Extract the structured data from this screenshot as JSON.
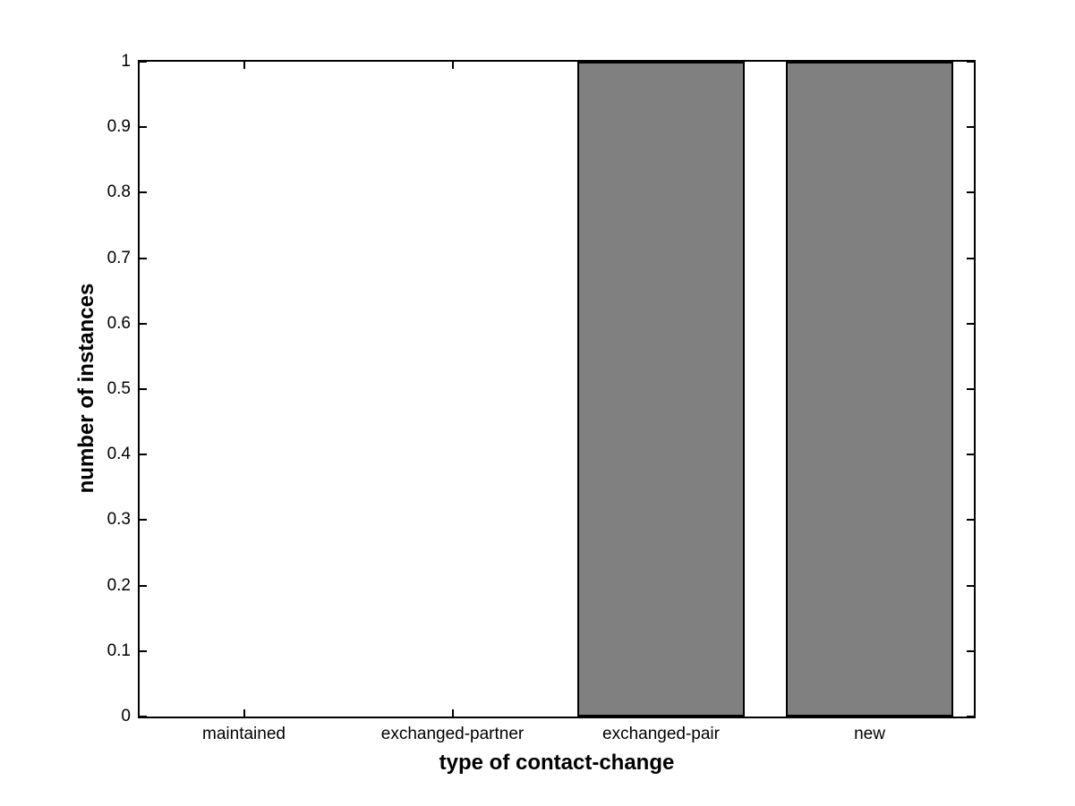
{
  "figure": {
    "background": "#ffffff"
  },
  "chart_data": {
    "type": "bar",
    "title": "",
    "xlabel": "type of contact-change",
    "ylabel": "number of instances",
    "categories": [
      "maintained",
      "exchanged-partner",
      "exchanged-pair",
      "new"
    ],
    "values": [
      0,
      0,
      1,
      1
    ],
    "ylim": [
      0,
      1
    ],
    "ytick_labels": [
      "0",
      "0.1",
      "0.2",
      "0.3",
      "0.4",
      "0.5",
      "0.6",
      "0.7",
      "0.8",
      "0.9",
      "1"
    ],
    "bar_style": {
      "width_fraction": 0.8,
      "fill": "#808080",
      "edge": "#000000"
    },
    "axis_style": {
      "color": "#000000",
      "grid": false,
      "box": true,
      "tick_direction": "in"
    },
    "legend": "none"
  }
}
